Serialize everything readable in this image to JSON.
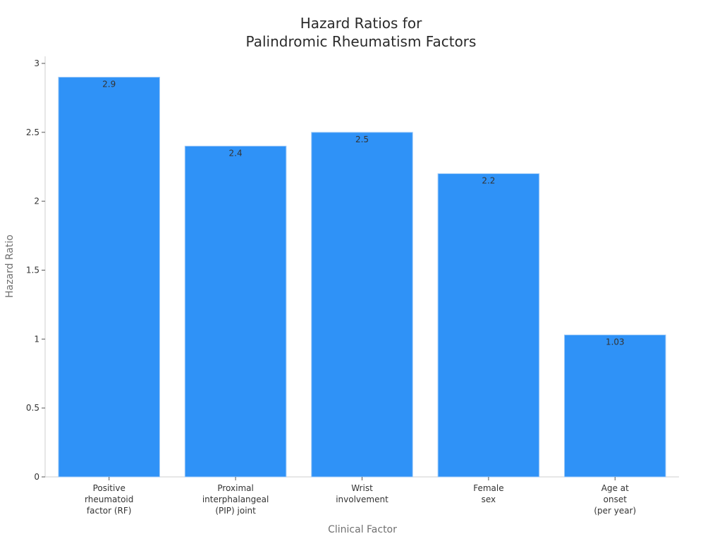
{
  "chart_data": {
    "type": "bar",
    "title": [
      "Hazard Ratios for",
      "Palindromic Rheumatism Factors"
    ],
    "xlabel": "Clinical Factor",
    "ylabel": "Hazard Ratio",
    "categories": [
      [
        "Positive",
        "rheumatoid",
        "factor (RF)"
      ],
      [
        "Proximal",
        "interphalangeal",
        "(PIP) joint"
      ],
      [
        "Wrist",
        "involvement"
      ],
      [
        "Female",
        "sex"
      ],
      [
        "Age at",
        "onset",
        "(per year)"
      ]
    ],
    "values": [
      2.9,
      2.4,
      2.5,
      2.2,
      1.03
    ],
    "data_labels": [
      "2.9",
      "2.4",
      "2.5",
      "2.2",
      "1.03"
    ],
    "ylim": [
      0,
      3.05
    ],
    "yticks": [
      0,
      0.5,
      1,
      1.5,
      2,
      2.5,
      3
    ],
    "ytick_labels": [
      "0",
      "0.5",
      "1",
      "1.5",
      "2",
      "2.5",
      "3"
    ],
    "grid": false,
    "legend": "none",
    "colors": {
      "bar": "#2f92f7",
      "bar_edge": "#9fcaf7"
    }
  }
}
